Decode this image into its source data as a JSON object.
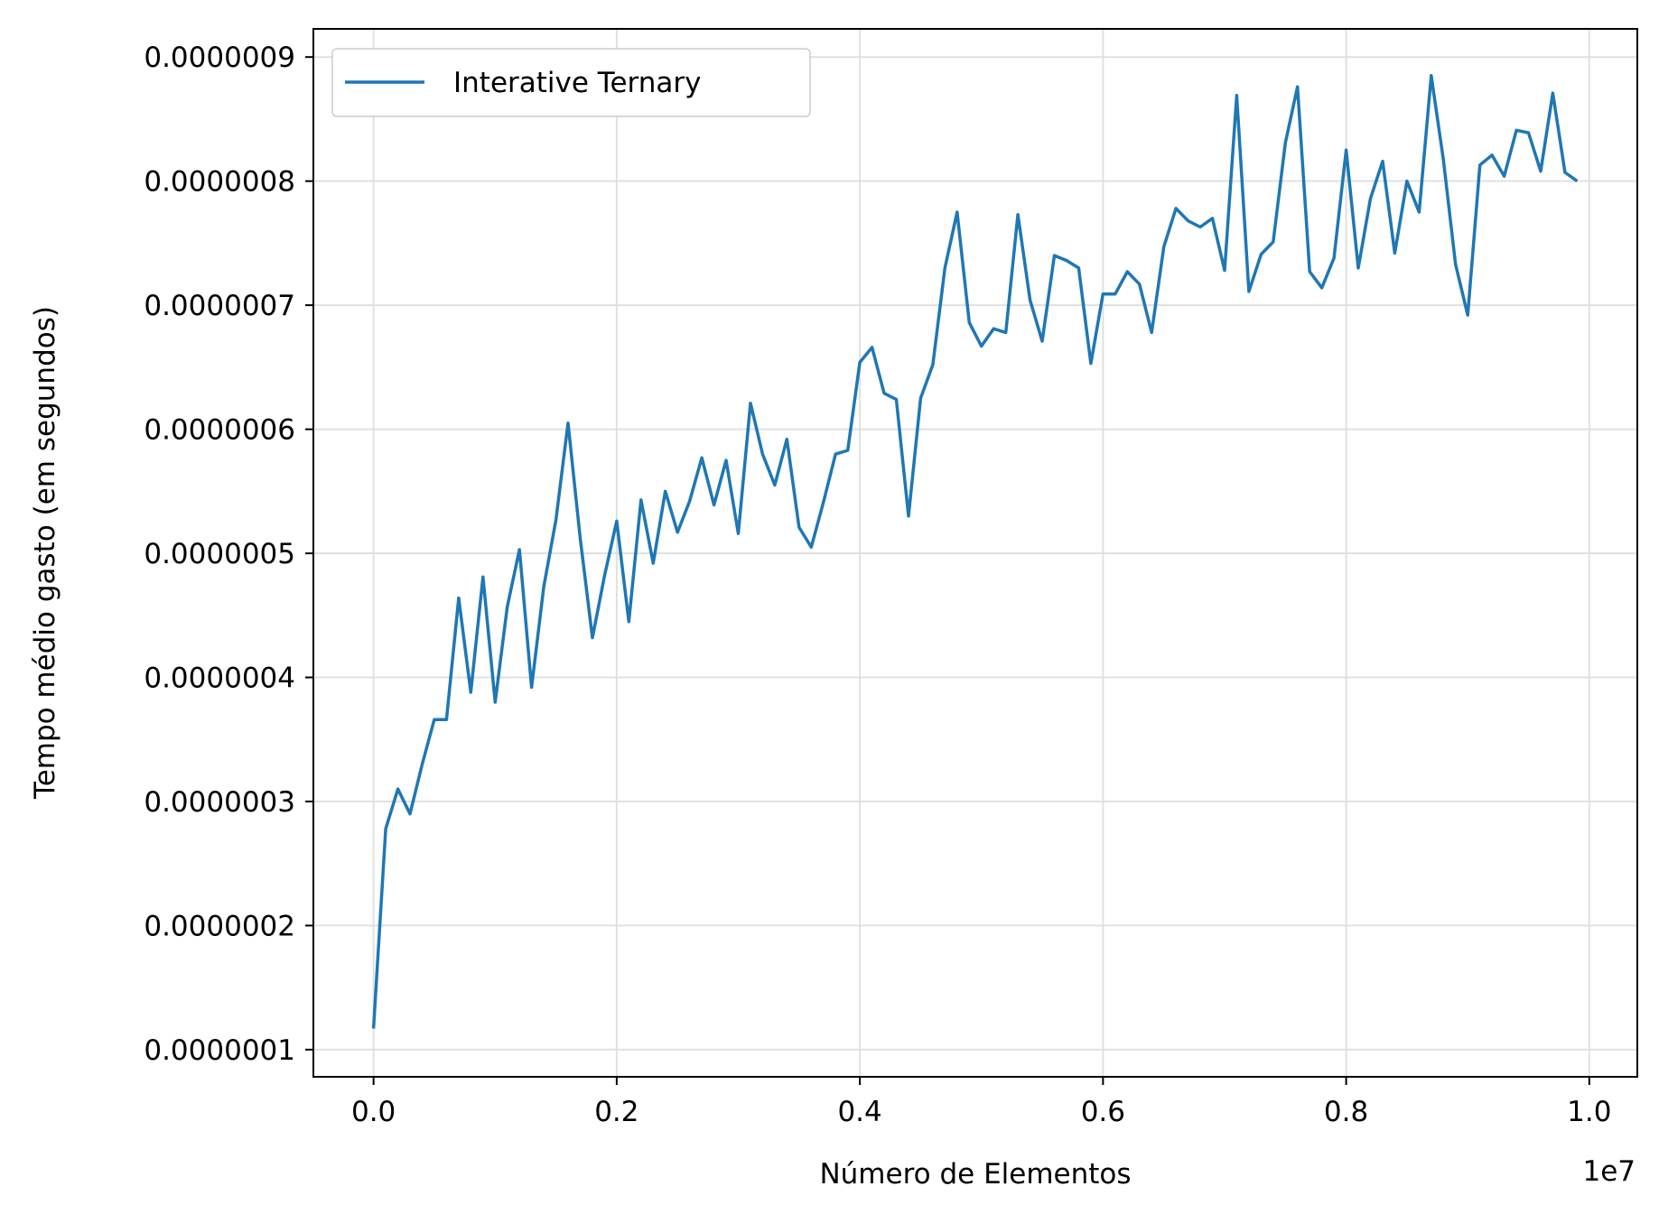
{
  "chart_data": {
    "type": "line",
    "xlabel": "Número de Elementos",
    "ylabel": "Tempo médio gasto (em segundos)",
    "x_offset_label": "1e7",
    "xlim": [
      -0.0495,
      1.0395
    ],
    "ylim": [
      7.81e-08,
      9.227e-07
    ],
    "x_ticks": [
      0.0,
      0.2,
      0.4,
      0.6,
      0.8,
      1.0
    ],
    "x_tick_labels": [
      "0.0",
      "0.2",
      "0.4",
      "0.6",
      "0.8",
      "1.0"
    ],
    "y_ticks": [
      1e-07,
      2e-07,
      3e-07,
      4e-07,
      5e-07,
      6e-07,
      7e-07,
      8e-07,
      9e-07
    ],
    "y_tick_labels": [
      "0.0000001",
      "0.0000002",
      "0.0000003",
      "0.0000004",
      "0.0000005",
      "0.0000006",
      "0.0000007",
      "0.0000008",
      "0.0000009"
    ],
    "grid": true,
    "legend_position": "top-left",
    "colors": {
      "series": "#1f77b4",
      "grid": "#e0e0e0",
      "axes": "#000000"
    },
    "series": [
      {
        "name": "Interative Ternary",
        "x": [
          0.0,
          0.01,
          0.02,
          0.03,
          0.04,
          0.05,
          0.06,
          0.07,
          0.08,
          0.09,
          0.1,
          0.11,
          0.12,
          0.13,
          0.14,
          0.15,
          0.16,
          0.17,
          0.18,
          0.19,
          0.2,
          0.21,
          0.22,
          0.23,
          0.24,
          0.25,
          0.26,
          0.27,
          0.28,
          0.29,
          0.3,
          0.31,
          0.32,
          0.33,
          0.34,
          0.35,
          0.36,
          0.37,
          0.38,
          0.39,
          0.4,
          0.41,
          0.42,
          0.43,
          0.44,
          0.45,
          0.46,
          0.47,
          0.48,
          0.49,
          0.5,
          0.51,
          0.52,
          0.53,
          0.54,
          0.55,
          0.56,
          0.57,
          0.58,
          0.59,
          0.6,
          0.61,
          0.62,
          0.63,
          0.64,
          0.65,
          0.66,
          0.67,
          0.68,
          0.69,
          0.7,
          0.71,
          0.72,
          0.73,
          0.74,
          0.75,
          0.76,
          0.77,
          0.78,
          0.79,
          0.8,
          0.81,
          0.82,
          0.83,
          0.84,
          0.85,
          0.86,
          0.87,
          0.88,
          0.89,
          0.9,
          0.91,
          0.92,
          0.93,
          0.94,
          0.95,
          0.96,
          0.97,
          0.98,
          0.99
        ],
        "values": [
          1.17e-07,
          2.78e-07,
          3.1e-07,
          2.9e-07,
          3.3e-07,
          3.66e-07,
          3.66e-07,
          4.64e-07,
          3.88e-07,
          4.81e-07,
          3.8e-07,
          4.57e-07,
          5.03e-07,
          3.92e-07,
          4.73e-07,
          5.27e-07,
          6.05e-07,
          5.12e-07,
          4.32e-07,
          4.82e-07,
          5.26e-07,
          4.45e-07,
          5.43e-07,
          4.92e-07,
          5.5e-07,
          5.17e-07,
          5.42e-07,
          5.77e-07,
          5.39e-07,
          5.75e-07,
          5.16e-07,
          6.21e-07,
          5.8e-07,
          5.55e-07,
          5.92e-07,
          5.21e-07,
          5.05e-07,
          5.41e-07,
          5.8e-07,
          5.83e-07,
          6.54e-07,
          6.66e-07,
          6.29e-07,
          6.24e-07,
          5.3e-07,
          6.25e-07,
          6.52e-07,
          7.3e-07,
          7.75e-07,
          6.86e-07,
          6.67e-07,
          6.81e-07,
          6.78e-07,
          7.73e-07,
          7.04e-07,
          6.71e-07,
          7.4e-07,
          7.36e-07,
          7.3e-07,
          6.53e-07,
          7.09e-07,
          7.09e-07,
          7.27e-07,
          7.17e-07,
          6.78e-07,
          7.47e-07,
          7.78e-07,
          7.68e-07,
          7.63e-07,
          7.7e-07,
          7.28e-07,
          8.69e-07,
          7.11e-07,
          7.41e-07,
          7.51e-07,
          8.31e-07,
          8.76e-07,
          7.27e-07,
          7.14e-07,
          7.38e-07,
          8.25e-07,
          7.3e-07,
          7.86e-07,
          8.16e-07,
          7.42e-07,
          8e-07,
          7.75e-07,
          8.85e-07,
          8.17e-07,
          7.33e-07,
          6.92e-07,
          8.13e-07,
          8.21e-07,
          8.04e-07,
          8.41e-07,
          8.39e-07,
          8.08e-07,
          8.71e-07,
          8.07e-07,
          8e-07
        ]
      }
    ]
  }
}
